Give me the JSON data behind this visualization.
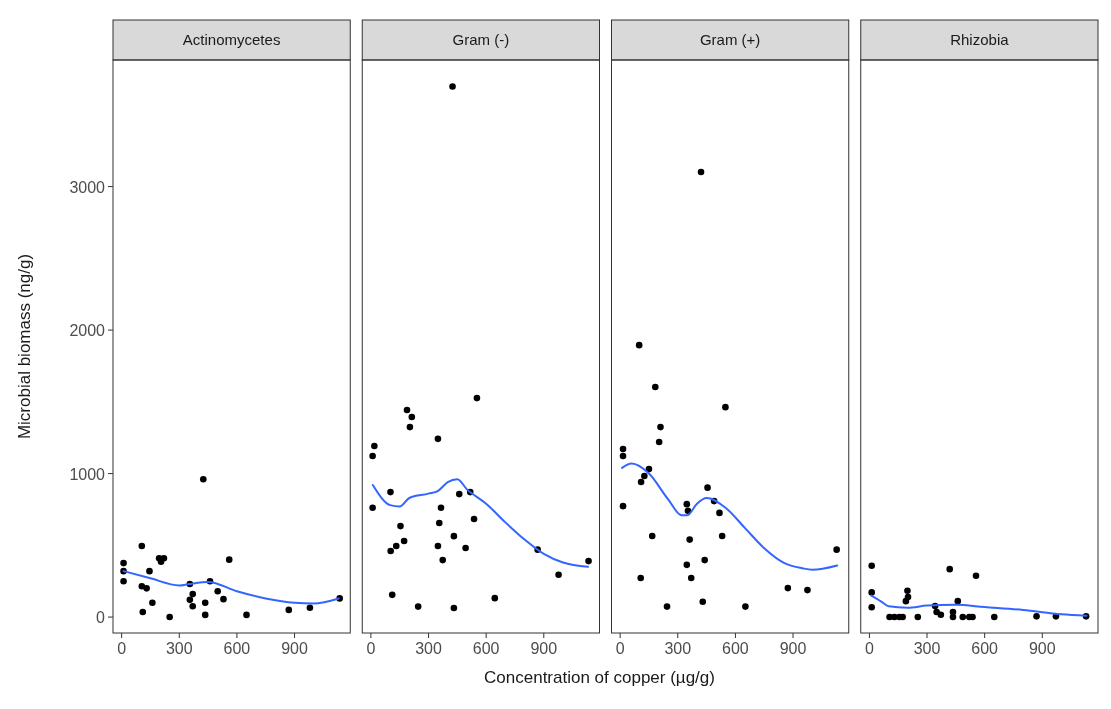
{
  "chart_data": [
    {
      "type": "scatter",
      "title": "Actinomycetes",
      "ylabel": "Microbial biomass (ng/g)",
      "xlim": [
        -45,
        1190
      ],
      "xticks": [
        0,
        300,
        600,
        900
      ],
      "ylim": [
        -111,
        3882
      ],
      "yticks": [
        0,
        1000,
        2000,
        3000
      ],
      "grid": false,
      "series": [
        {
          "type": "scatter",
          "color": "#000000",
          "marker": "circle",
          "x": [
            10,
            10,
            10,
            105,
            105,
            130,
            110,
            145,
            160,
            195,
            220,
            205,
            250,
            355,
            370,
            355,
            370,
            425,
            460,
            435,
            435,
            500,
            530,
            560,
            650,
            870,
            980,
            1135
          ],
          "values": [
            376,
            320,
            250,
            495,
            215,
            200,
            35,
            320,
            100,
            410,
            410,
            385,
            0,
            230,
            160,
            120,
            75,
            960,
            250,
            100,
            15,
            180,
            125,
            400,
            15,
            50,
            65,
            130
          ]
        },
        {
          "type": "line",
          "color": "#3366ff",
          "marker": "none",
          "line_style": "solid",
          "x": [
            10,
            150,
            300,
            350,
            450,
            600,
            750,
            900,
            1000,
            1130
          ],
          "values": [
            320,
            270,
            220,
            230,
            245,
            180,
            130,
            100,
            95,
            130
          ]
        }
      ]
    },
    {
      "type": "scatter",
      "title": "Gram (-)",
      "xlabel": "Concentration of copper (µg/g)",
      "xlim": [
        -45,
        1190
      ],
      "xticks": [
        0,
        300,
        600,
        900
      ],
      "ylim": [
        -111,
        3882
      ],
      "grid": false,
      "tick_labels": "x",
      "series": [
        {
          "type": "scatter",
          "color": "#000000",
          "marker": "circle",
          "x": [
            425,
            552,
            188,
            213,
            203,
            18,
            9,
            349,
            102,
            460,
            517,
            9,
            365,
            356,
            537,
            154,
            173,
            432,
            132,
            103,
            349,
            493,
            374,
            868,
            977,
            1133,
            111,
            246,
            432,
            645
          ],
          "values": [
            3697,
            1526,
            1443,
            1394,
            1324,
            1192,
            1122,
            1242,
            871,
            857,
            871,
            762,
            762,
            656,
            683,
            634,
            530,
            564,
            495,
            460,
            495,
            481,
            397,
            470,
            295,
            390,
            155,
            73,
            63,
            132
          ]
        },
        {
          "type": "line",
          "color": "#3366ff",
          "marker": "none",
          "line_style": "solid",
          "x": [
            10,
            100,
            150,
            200,
            300,
            350,
            400,
            450,
            500,
            600,
            700,
            800,
            900,
            1000,
            1130
          ],
          "values": [
            920,
            780,
            770,
            830,
            860,
            880,
            940,
            960,
            890,
            790,
            660,
            540,
            440,
            380,
            350
          ]
        }
      ]
    },
    {
      "type": "scatter",
      "title": "Gram (+)",
      "xlim": [
        -45,
        1190
      ],
      "xticks": [
        0,
        300,
        600,
        900
      ],
      "ylim": [
        -111,
        3882
      ],
      "grid": false,
      "tick_labels": "x",
      "series": [
        {
          "type": "scatter",
          "color": "#000000",
          "marker": "circle",
          "x": [
            421,
            99,
            183,
            548,
            210,
            203,
            15,
            15,
            150,
            126,
            109,
            455,
            489,
            347,
            353,
            517,
            15,
            167,
            362,
            531,
            440,
            347,
            107,
            370,
            873,
            975,
            1127,
            244,
            430,
            652
          ],
          "values": [
            3101,
            1895,
            1603,
            1463,
            1324,
            1220,
            1171,
            1122,
            1031,
            983,
            941,
            902,
            808,
            787,
            741,
            726,
            773,
            565,
            540,
            565,
            397,
            364,
            272,
            272,
            202,
            188,
            470,
            73,
            107,
            73
          ]
        },
        {
          "type": "line",
          "color": "#3366ff",
          "marker": "none",
          "line_style": "solid",
          "x": [
            10,
            60,
            150,
            250,
            320,
            350,
            400,
            450,
            550,
            650,
            750,
            850,
            950,
            1000,
            1130
          ],
          "values": [
            1040,
            1070,
            1000,
            820,
            710,
            710,
            790,
            830,
            760,
            620,
            480,
            380,
            340,
            330,
            360
          ]
        }
      ]
    },
    {
      "type": "scatter",
      "title": "Rhizobia",
      "xlim": [
        -45,
        1190
      ],
      "xticks": [
        0,
        300,
        600,
        900
      ],
      "ylim": [
        -111,
        3882
      ],
      "grid": false,
      "tick_labels": "x",
      "series": [
        {
          "type": "scatter",
          "color": "#000000",
          "marker": "circle",
          "x": [
            12,
            12,
            12,
            418,
            555,
            198,
            201,
            190,
            460,
            342,
            350,
            372,
            435,
            105,
            130,
            156,
            173,
            252,
            435,
            486,
            520,
            537,
            650,
            870,
            971,
            1128
          ],
          "values": [
            358,
            172,
            68,
            334,
            288,
            183,
            139,
            111,
            111,
            77,
            35,
            16,
            35,
            0,
            0,
            0,
            0,
            0,
            0,
            0,
            0,
            0,
            0,
            5,
            5,
            5
          ]
        },
        {
          "type": "line",
          "color": "#3366ff",
          "marker": "none",
          "line_style": "solid",
          "x": [
            10,
            60,
            100,
            200,
            300,
            450,
            600,
            800,
            1000,
            1130
          ],
          "values": [
            150,
            110,
            75,
            65,
            80,
            85,
            70,
            50,
            20,
            10
          ]
        }
      ]
    }
  ]
}
